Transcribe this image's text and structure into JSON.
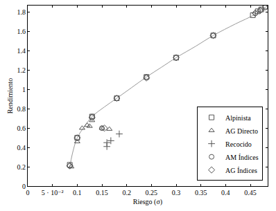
{
  "chart_data": {
    "type": "scatter",
    "x_label": "Riesgo (σ)",
    "y_label": "Rendimiento",
    "xlim": [
      0,
      0.485
    ],
    "ylim": [
      0,
      1.87
    ],
    "xticks": [
      0,
      {
        "value": 0.05,
        "label": "5 · 10⁻²"
      },
      0.1,
      0.15,
      0.2,
      0.25,
      0.3,
      0.35,
      0.4,
      0.45
    ],
    "yticks": [
      0,
      0.2,
      0.4,
      0.6,
      0.8,
      1,
      1.2,
      1.4,
      1.6,
      1.8
    ],
    "grid": false,
    "legend": "bottom right",
    "series": [
      {
        "type": "line",
        "color": "#999999",
        "line_style": "solid",
        "x": [
          0.085,
          0.09,
          0.1,
          0.115,
          0.13,
          0.155,
          0.18,
          0.21,
          0.24,
          0.27,
          0.3,
          0.34,
          0.375,
          0.42,
          0.46,
          0.485
        ],
        "values": [
          0.2,
          0.33,
          0.5,
          0.62,
          0.72,
          0.82,
          0.91,
          1.02,
          1.13,
          1.23,
          1.33,
          1.45,
          1.56,
          1.68,
          1.78,
          1.87
        ]
      },
      {
        "name": "Alpinista",
        "marker": "square",
        "color": "#555555",
        "x": [
          0.085,
          0.1,
          0.13,
          0.18,
          0.24,
          0.3,
          0.375,
          0.455,
          0.465,
          0.472,
          0.48
        ],
        "values": [
          0.22,
          0.5,
          0.72,
          0.91,
          1.13,
          1.33,
          1.56,
          1.77,
          1.81,
          1.83,
          1.86
        ]
      },
      {
        "name": "AG Directo",
        "marker": "triangle",
        "color": "#555555",
        "x": [
          0.088,
          0.1,
          0.11,
          0.12,
          0.125,
          0.13,
          0.15,
          0.165
        ],
        "values": [
          0.2,
          0.46,
          0.6,
          0.63,
          0.62,
          0.68,
          0.6,
          0.59
        ]
      },
      {
        "name": "Recocido",
        "marker": "plus",
        "color": "#555555",
        "x": [
          0.16,
          0.16,
          0.168,
          0.185
        ],
        "values": [
          0.45,
          0.41,
          0.47,
          0.54
        ]
      },
      {
        "name": "AM Índices",
        "marker": "circle",
        "color": "#555555",
        "x": [
          0.085,
          0.1,
          0.13,
          0.15,
          0.18,
          0.24,
          0.3,
          0.375,
          0.46,
          0.47,
          0.48
        ],
        "values": [
          0.21,
          0.5,
          0.72,
          0.6,
          0.91,
          1.13,
          1.33,
          1.56,
          1.79,
          1.82,
          1.85
        ]
      },
      {
        "name": "AG Índices",
        "marker": "diamond",
        "color": "#555555",
        "x": [
          0.085,
          0.1,
          0.13,
          0.155,
          0.18,
          0.24,
          0.3,
          0.375,
          0.46,
          0.47
        ],
        "values": [
          0.21,
          0.5,
          0.71,
          0.6,
          0.91,
          1.12,
          1.33,
          1.56,
          1.79,
          1.82
        ]
      }
    ]
  }
}
